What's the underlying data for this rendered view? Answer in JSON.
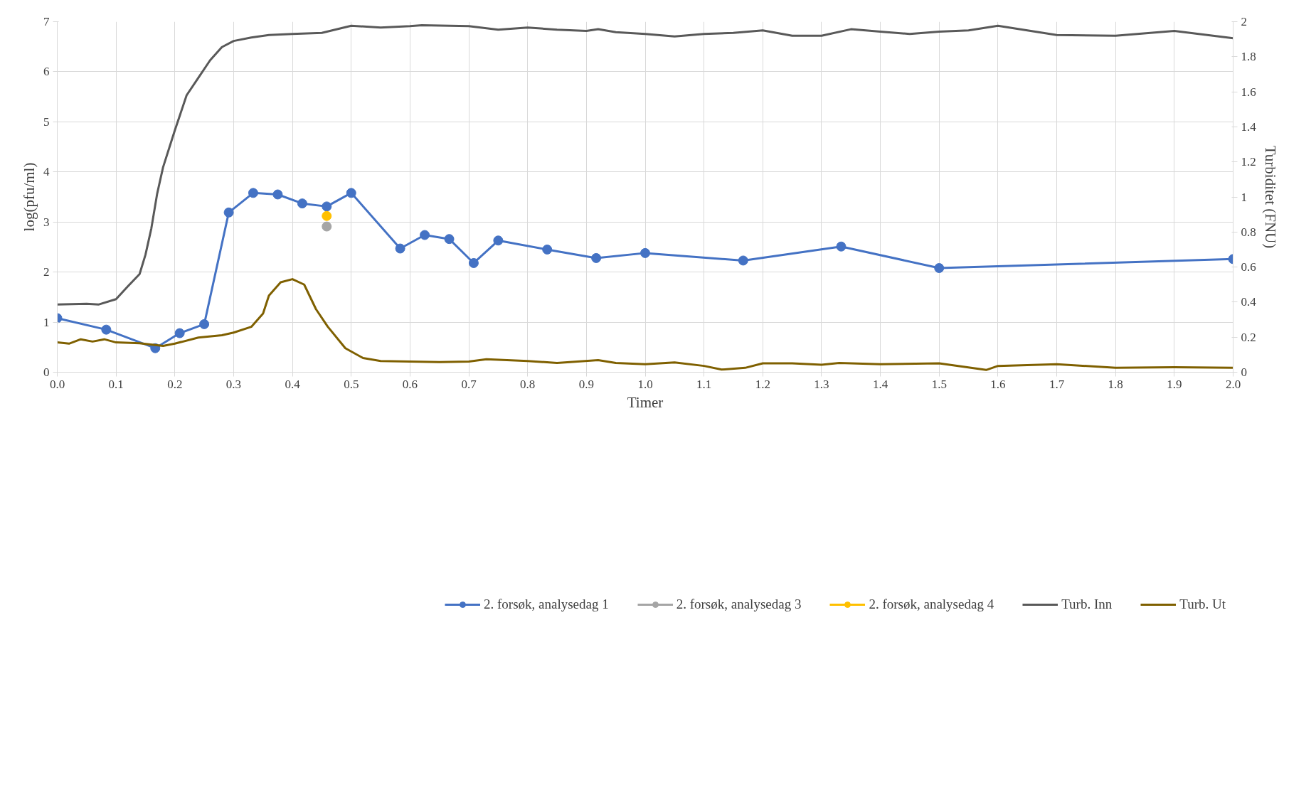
{
  "chart_data": {
    "type": "line",
    "xlabel": "Timer",
    "ylabel": "log(pfu/ml)",
    "y2label": "Turbiditet (FNU)",
    "xlim": [
      0,
      2
    ],
    "xticks": [
      {
        "value": 0,
        "label": "0.0"
      },
      0.1,
      0.2,
      0.3,
      0.4,
      0.5,
      0.6,
      0.7,
      0.8,
      0.9,
      {
        "value": 1,
        "label": "1.0"
      },
      1.1,
      1.2,
      1.3,
      1.4,
      1.5,
      1.6,
      1.7,
      1.8,
      1.9,
      {
        "value": 2,
        "label": "2.0"
      }
    ],
    "ylim": [
      0,
      7
    ],
    "yticks": [
      0,
      1,
      2,
      3,
      4,
      5,
      6,
      7
    ],
    "y2lim": [
      0,
      2
    ],
    "y2ticks": [
      0,
      0.2,
      0.4,
      0.6,
      0.8,
      1,
      1.2,
      1.4,
      1.6,
      1.8,
      2
    ],
    "grid": true,
    "legend": "bottom",
    "line_style": "solid",
    "series": [
      {
        "name": "2. forsøk, analysedag 1",
        "color": "#4472c4",
        "marker": "circle",
        "x": [
          0,
          0.0833,
          0.1667,
          0.2083,
          0.25,
          0.2917,
          0.3333,
          0.375,
          0.4167,
          0.4583,
          0.5,
          0.5833,
          0.625,
          0.6667,
          0.7083,
          0.75,
          0.8333,
          0.9167,
          1.0,
          1.1667,
          1.3333,
          1.5,
          2.0
        ],
        "values": [
          1.08,
          0.85,
          0.48,
          0.78,
          0.96,
          3.19,
          3.58,
          3.55,
          3.37,
          3.31,
          3.58,
          2.47,
          2.74,
          2.66,
          2.18,
          2.63,
          2.45,
          2.28,
          2.38,
          2.23,
          2.51,
          2.08,
          2.26
        ]
      },
      {
        "name": "2. forsøk, analysedag 3",
        "color": "#a5a5a5",
        "marker": "circle",
        "x": [
          0.4583
        ],
        "values": [
          2.91
        ]
      },
      {
        "name": "2. forsøk, analysedag 4",
        "color": "#ffc000",
        "marker": "circle",
        "x": [
          0.4583
        ],
        "values": [
          3.12
        ]
      },
      {
        "name": "Turb. Inn",
        "color": "#595959",
        "marker": "none",
        "axis": "y2",
        "x": [
          0,
          0.05,
          0.07,
          0.1,
          0.12,
          0.14,
          0.15,
          0.16,
          0.17,
          0.18,
          0.2,
          0.22,
          0.24,
          0.26,
          0.28,
          0.3,
          0.33,
          0.36,
          0.4,
          0.45,
          0.5,
          0.55,
          0.6,
          0.62,
          0.7,
          0.75,
          0.8,
          0.85,
          0.9,
          0.92,
          0.95,
          1.0,
          1.05,
          1.1,
          1.15,
          1.2,
          1.25,
          1.3,
          1.35,
          1.4,
          1.45,
          1.5,
          1.55,
          1.6,
          1.65,
          1.7,
          1.8,
          1.9,
          2.0
        ],
        "values": [
          0.386,
          0.39,
          0.386,
          0.417,
          0.49,
          0.56,
          0.67,
          0.82,
          1.02,
          1.17,
          1.38,
          1.58,
          1.68,
          1.78,
          1.855,
          1.89,
          1.91,
          1.924,
          1.93,
          1.936,
          1.977,
          1.967,
          1.975,
          1.98,
          1.975,
          1.954,
          1.967,
          1.954,
          1.947,
          1.957,
          1.94,
          1.93,
          1.916,
          1.93,
          1.936,
          1.95,
          1.92,
          1.92,
          1.957,
          1.943,
          1.93,
          1.943,
          1.95,
          1.977,
          1.95,
          1.924,
          1.92,
          1.947,
          1.906
        ]
      },
      {
        "name": "Turb. Ut",
        "color": "#7f6000",
        "marker": "none",
        "axis": "y2",
        "x": [
          0,
          0.02,
          0.04,
          0.06,
          0.08,
          0.1,
          0.14,
          0.18,
          0.2,
          0.24,
          0.28,
          0.3,
          0.33,
          0.35,
          0.36,
          0.38,
          0.4,
          0.42,
          0.44,
          0.46,
          0.49,
          0.52,
          0.55,
          0.6,
          0.65,
          0.7,
          0.73,
          0.8,
          0.85,
          0.92,
          0.95,
          1.0,
          1.05,
          1.1,
          1.13,
          1.17,
          1.2,
          1.25,
          1.3,
          1.33,
          1.4,
          1.5,
          1.58,
          1.6,
          1.65,
          1.7,
          1.8,
          1.9,
          2.0
        ],
        "values": [
          0.17,
          0.163,
          0.188,
          0.175,
          0.188,
          0.17,
          0.165,
          0.15,
          0.163,
          0.198,
          0.211,
          0.226,
          0.259,
          0.335,
          0.437,
          0.513,
          0.531,
          0.5,
          0.36,
          0.26,
          0.137,
          0.081,
          0.064,
          0.061,
          0.058,
          0.061,
          0.074,
          0.064,
          0.053,
          0.069,
          0.053,
          0.046,
          0.056,
          0.036,
          0.015,
          0.025,
          0.051,
          0.051,
          0.043,
          0.053,
          0.046,
          0.051,
          0.013,
          0.036,
          0.041,
          0.046,
          0.025,
          0.028,
          0.025
        ]
      }
    ]
  }
}
